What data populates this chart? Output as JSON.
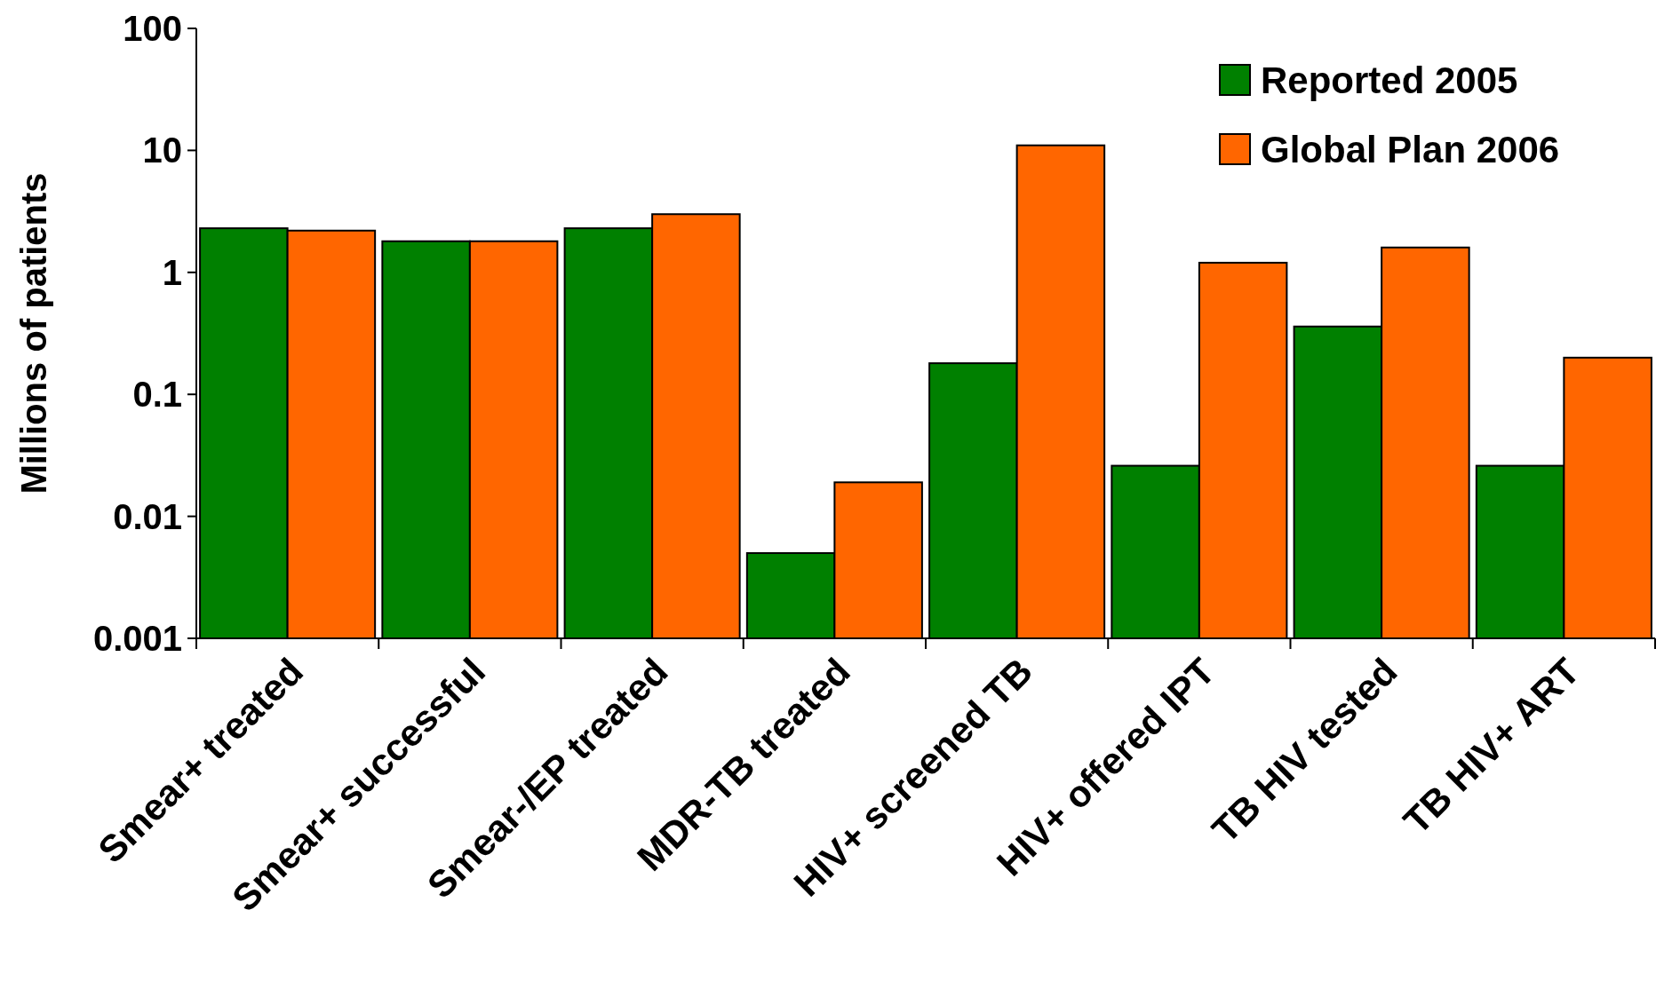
{
  "chart_data": {
    "type": "bar",
    "ylabel": "Millions of patients",
    "log": true,
    "categories": [
      "Smear+ treated",
      "Smear+ successful",
      "Smear-/EP treated",
      "MDR-TB treated",
      "HIV+ screened TB",
      "HIV+ offered IPT",
      "TB HIV tested",
      "TB HIV+ ART"
    ],
    "series": [
      {
        "name": "Reported 2005",
        "color": "#008000",
        "values": [
          2.3,
          1.8,
          2.3,
          0.005,
          0.18,
          0.026,
          0.36,
          0.026
        ]
      },
      {
        "name": "Global Plan 2006",
        "color": "#ff6600",
        "values": [
          2.2,
          1.8,
          3.0,
          0.019,
          11,
          1.2,
          1.6,
          0.2
        ]
      }
    ],
    "ylim": [
      0.001,
      100
    ],
    "yticks": [
      0.001,
      0.01,
      0.1,
      1,
      10,
      100
    ],
    "grid": false,
    "legend": "top right"
  }
}
